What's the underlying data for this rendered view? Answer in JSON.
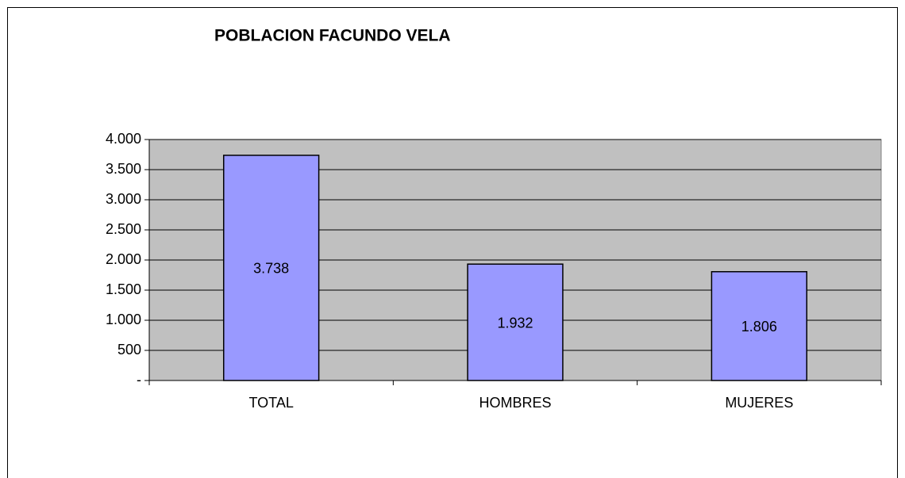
{
  "chart_data": {
    "type": "bar",
    "title": "POBLACION FACUNDO VELA",
    "categories": [
      "TOTAL",
      "HOMBRES",
      "MUJERES"
    ],
    "values": [
      3738,
      1932,
      1806
    ],
    "value_labels": [
      "3.738",
      "1.932",
      "1.806"
    ],
    "color": "#9999ff",
    "ylim": [
      0,
      4000
    ],
    "yticks": [
      {
        "value": 0,
        "label": "-"
      },
      500,
      {
        "value": 1000,
        "label": "1.000"
      },
      {
        "value": 1500,
        "label": "1.500"
      },
      {
        "value": 2000,
        "label": "2.000"
      },
      {
        "value": 2500,
        "label": "2.500"
      },
      {
        "value": 3000,
        "label": "3.000"
      },
      {
        "value": 3500,
        "label": "3.500"
      },
      {
        "value": 4000,
        "label": "4.000"
      }
    ],
    "grid": true
  }
}
